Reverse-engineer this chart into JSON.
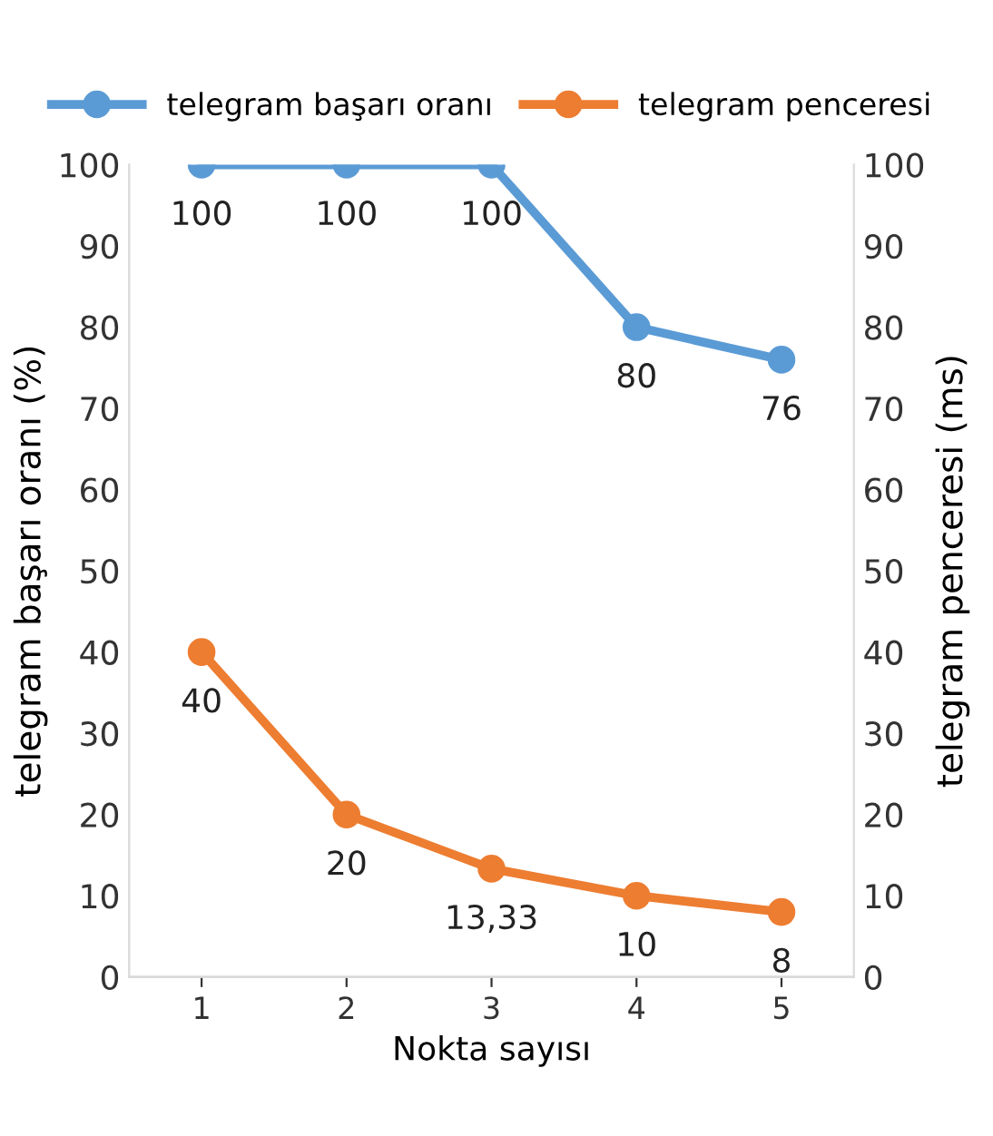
{
  "chart_data": {
    "type": "line",
    "xlabel": "Nokta sayısı",
    "ylabel": "telegram başarı oranı (%)",
    "y2label": "telegram penceresi (ms)",
    "categories": [
      "1",
      "2",
      "3",
      "4",
      "5"
    ],
    "series": [
      {
        "name": "telegram başarı oranı",
        "color": "#5b9bd5",
        "values": [
          100,
          100,
          100,
          80,
          76
        ],
        "value_labels": [
          "100",
          "100",
          "100",
          "80",
          "76"
        ]
      },
      {
        "name": "telegram penceresi",
        "color": "#ed7d31",
        "values": [
          40,
          20,
          13.33,
          10,
          8
        ],
        "value_labels": [
          "40",
          "20",
          "13,33",
          "10",
          "8"
        ]
      }
    ],
    "ylim": [
      0,
      100
    ],
    "yticks": [
      0,
      10,
      20,
      30,
      40,
      50,
      60,
      70,
      80,
      90,
      100
    ],
    "y2lim": [
      0,
      100
    ],
    "y2ticks": [
      0,
      10,
      20,
      30,
      40,
      50,
      60,
      70,
      80,
      90,
      100
    ],
    "grid": false,
    "legend": "top",
    "marker": "circle",
    "line_style": "solid"
  }
}
